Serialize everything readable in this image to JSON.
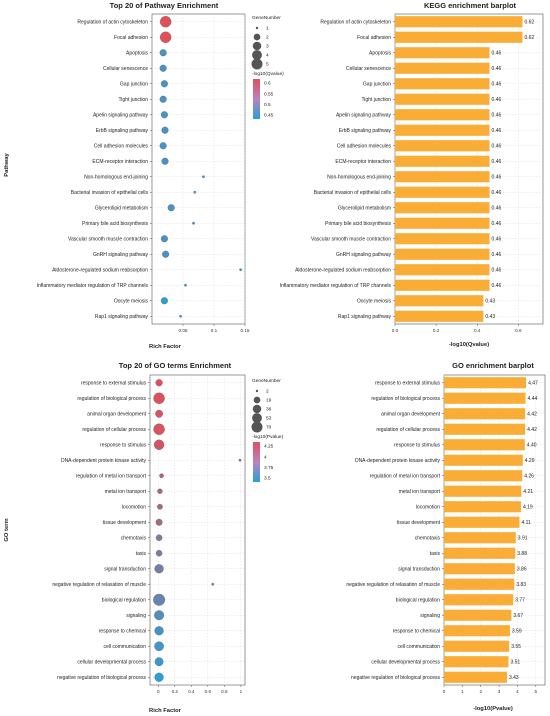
{
  "chart_data": [
    {
      "type": "scatter",
      "title": "Top 20 of Pathway Enrichment",
      "xlabel": "Rich Factor",
      "ylabel": "Pathway",
      "xlim": [
        0,
        0.15
      ],
      "xticks": [
        "0.05",
        "0.1",
        "0.15"
      ],
      "xtick_values": [
        0.05,
        0.1,
        0.15
      ],
      "categories": [
        "Regulation of actin cytoskeleton",
        "Focal adhesion",
        "Apoptosis",
        "Cellular senescence",
        "Gap junction",
        "Tight junction",
        "Apelin signaling pathway",
        "ErbB signaling pathway",
        "Cell adhesion molecules",
        "ECM-receptor interaction",
        "Non-homologous end-joining",
        "Bacterial invasion of epithelial cells",
        "Glycerolipid metabolism",
        "Primary bile acid biosynthesis",
        "Vascular smooth muscle contraction",
        "GnRH signaling pathway",
        "Aldosterone-regulated sodium reabsorption",
        "Inflammatory mediator regulation of TRP channels",
        "Oocyte meiosis",
        "Rap1 signaling pathway"
      ],
      "x": [
        0.022,
        0.022,
        0.018,
        0.018,
        0.02,
        0.018,
        0.02,
        0.021,
        0.018,
        0.021,
        0.083,
        0.069,
        0.031,
        0.067,
        0.02,
        0.022,
        0.143,
        0.054,
        0.02,
        0.046
      ],
      "gene_number": [
        5,
        5,
        2,
        2,
        2,
        2,
        2,
        2,
        2,
        2,
        1,
        1,
        2,
        1,
        2,
        2,
        1,
        1,
        2,
        1
      ],
      "color_value": [
        0.62,
        0.62,
        0.46,
        0.46,
        0.46,
        0.46,
        0.46,
        0.46,
        0.46,
        0.46,
        0.46,
        0.46,
        0.46,
        0.46,
        0.46,
        0.46,
        0.46,
        0.46,
        0.43,
        0.43
      ],
      "legend_size_title": "GeneNumber",
      "legend_sizes": [
        1,
        2,
        3,
        4,
        5
      ],
      "legend_color_title": "-log10(Qvalue)",
      "legend_colors": [
        "0.6",
        "0.55",
        "0.5",
        "0.45"
      ],
      "color_range": [
        0.43,
        0.62
      ],
      "low_color": "#2a9fd8",
      "high_color": "#e0505a"
    },
    {
      "type": "bar",
      "title": "KEGG enrichment barplot",
      "xlabel": "-log10(Qvalue)",
      "xlim": [
        0,
        0.72
      ],
      "xticks": [
        "0.0",
        "0.2",
        "0.4",
        "0.6"
      ],
      "xtick_values": [
        0,
        0.2,
        0.4,
        0.6
      ],
      "categories": [
        "Regulation of actin cytoskeleton",
        "Focal adhesion",
        "Apoptosis",
        "Cellular senescence",
        "Gap junction",
        "Tight junction",
        "Apelin signaling pathway",
        "ErbB signaling pathway",
        "Cell adhesion molecules",
        "ECM-receptor interaction",
        "Non-homologous end-joining",
        "Bacterial invasion of epithelial cells",
        "Glycerolipid metabolism",
        "Primary bile acid biosynthesis",
        "Vascular smooth muscle contraction",
        "GnRH signaling pathway",
        "Aldosterone-regulated sodium reabsorption",
        "Inflammatory mediator regulation of TRP channels",
        "Oocyte meiosis",
        "Rap1 signaling pathway"
      ],
      "values": [
        0.62,
        0.62,
        0.46,
        0.46,
        0.46,
        0.46,
        0.46,
        0.46,
        0.46,
        0.46,
        0.46,
        0.46,
        0.46,
        0.46,
        0.46,
        0.46,
        0.46,
        0.46,
        0.43,
        0.43
      ],
      "value_labels": [
        "0.62",
        "0.62",
        "0.46",
        "0.46",
        "0.46",
        "0.46",
        "0.46",
        "0.46",
        "0.46",
        "0.46",
        "0.46",
        "0.46",
        "0.46",
        "0.46",
        "0.46",
        "0.46",
        "0.46",
        "0.46",
        "0.43",
        "0.43"
      ],
      "bar_color": "#f9ad36"
    },
    {
      "type": "scatter",
      "title": "Top 20 of GO terms Enrichment",
      "xlabel": "Rich Factor",
      "ylabel": "GO term",
      "xlim": [
        -0.1,
        1.05
      ],
      "xticks": [
        "0",
        "0.2",
        "0.4",
        "0.6",
        "0.8",
        "1"
      ],
      "xtick_values": [
        0,
        0.2,
        0.4,
        0.6,
        0.8,
        1
      ],
      "categories": [
        "response to external stimulus",
        "regulation of biological process",
        "animal organ development",
        "regulation of cellular process",
        "response to stimulus",
        "DNA-dependent protein kinase activity",
        "regulation of metal ion transport",
        "metal ion transport",
        "locomotion",
        "tissue development",
        "chemotaxis",
        "taxis",
        "signal transduction",
        "negative regulation of relaxation of muscle",
        "biological regulation",
        "signaling",
        "response to chemical",
        "cell communication",
        "cellular developmental process",
        "negative regulation of biological process"
      ],
      "x": [
        0.01,
        0.01,
        0.01,
        0.01,
        0.01,
        0.99,
        0.04,
        0.02,
        0.02,
        0.01,
        0.01,
        0.01,
        0.01,
        0.66,
        0.01,
        0.01,
        0.01,
        0.01,
        0.01,
        0.01
      ],
      "gene_number": [
        20,
        70,
        25,
        70,
        55,
        2,
        5,
        8,
        10,
        18,
        15,
        15,
        40,
        2,
        80,
        50,
        40,
        45,
        35,
        40
      ],
      "color_value": [
        4.47,
        4.44,
        4.42,
        4.42,
        4.4,
        4.29,
        4.26,
        4.21,
        4.19,
        4.11,
        3.91,
        3.88,
        3.86,
        3.83,
        3.77,
        3.67,
        3.59,
        3.55,
        3.51,
        3.43
      ],
      "legend_size_title": "GeneNumber",
      "legend_sizes": [
        2,
        19,
        36,
        53,
        70
      ],
      "legend_color_title": "-log10(Pvalue)",
      "legend_colors": [
        "4.25",
        "4",
        "3.75",
        "3.5"
      ],
      "color_range": [
        3.43,
        4.47
      ],
      "low_color": "#2a9fd8",
      "high_color": "#e0505a"
    },
    {
      "type": "bar",
      "title": "GO enrichment barplot",
      "xlabel": "-log10(Pvalue)",
      "xlim": [
        0,
        5.5
      ],
      "xticks": [
        "0",
        "1",
        "2",
        "3",
        "4",
        "5"
      ],
      "xtick_values": [
        0,
        1,
        2,
        3,
        4,
        5
      ],
      "categories": [
        "response to external stimulus",
        "regulation of biological process",
        "animal organ development",
        "regulation of cellular process",
        "response to stimulus",
        "DNA-dependent protein kinase activity",
        "regulation of metal ion transport",
        "metal ion transport",
        "locomotion",
        "tissue development",
        "chemotaxis",
        "taxis",
        "signal transduction",
        "negative regulation of relaxation of muscle",
        "biological regulation",
        "signaling",
        "response to chemical",
        "cell communication",
        "cellular developmental process",
        "negative regulation of biological process"
      ],
      "values": [
        4.47,
        4.44,
        4.42,
        4.42,
        4.4,
        4.29,
        4.26,
        4.21,
        4.19,
        4.11,
        3.91,
        3.88,
        3.86,
        3.83,
        3.77,
        3.67,
        3.59,
        3.55,
        3.51,
        3.43
      ],
      "value_labels": [
        "4.47",
        "4.44",
        "4.42",
        "4.42",
        "4.40",
        "4.29",
        "4.26",
        "4.21",
        "4.19",
        "4.11",
        "3.91",
        "3.88",
        "3.86",
        "3.83",
        "3.77",
        "3.67",
        "3.59",
        "3.55",
        "3.51",
        "3.43"
      ],
      "bar_color": "#f9ad36"
    }
  ]
}
